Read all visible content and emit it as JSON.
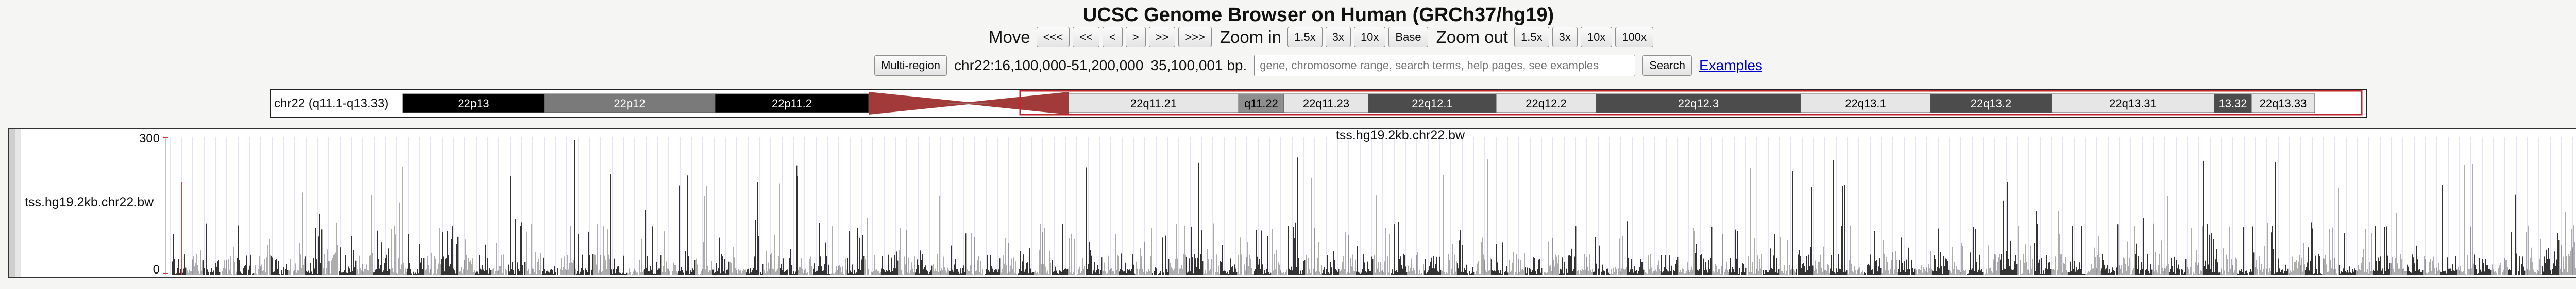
{
  "title": "UCSC Genome Browser on Human (GRCh37/hg19)",
  "nav": {
    "move_label": "Move",
    "move_buttons": [
      "<<<",
      "<<",
      "<",
      ">",
      ">>",
      ">>>"
    ],
    "zoom_in_label": "Zoom in",
    "zoom_in_buttons": [
      "1.5x",
      "3x",
      "10x",
      "Base"
    ],
    "zoom_out_label": "Zoom out",
    "zoom_out_buttons": [
      "1.5x",
      "3x",
      "10x",
      "100x"
    ]
  },
  "position": {
    "multi_region_label": "Multi-region",
    "coords": "chr22:16,100,000-51,200,000",
    "size": "35,100,001 bp.",
    "search_placeholder": "gene, chromosome range, search terms, help pages, see examples",
    "search_label": "Search",
    "examples_link": "Examples"
  },
  "ideogram": {
    "label": "chr22 (q11.1-q13.33)",
    "bands": [
      {
        "name": "22p13",
        "shade": "black"
      },
      {
        "name": "22p12",
        "shade": "gray"
      },
      {
        "name": "22p11.2",
        "shade": "black"
      },
      {
        "name": "",
        "shade": "centromere"
      },
      {
        "name": "22q11.21",
        "shade": "light"
      },
      {
        "name": "q11.22",
        "shade": "mid"
      },
      {
        "name": "22q11.23",
        "shade": "light"
      },
      {
        "name": "22q12.1",
        "shade": "dark"
      },
      {
        "name": "22q12.2",
        "shade": "light"
      },
      {
        "name": "22q12.3",
        "shade": "dark"
      },
      {
        "name": "22q13.1",
        "shade": "light"
      },
      {
        "name": "22q13.2",
        "shade": "dark"
      },
      {
        "name": "22q13.31",
        "shade": "light"
      },
      {
        "name": "13.32",
        "shade": "dark"
      },
      {
        "name": "22q13.33",
        "shade": "light"
      }
    ]
  },
  "track": {
    "name": "tss.hg19.2kb.chr22.bw",
    "center_title": "tss.hg19.2kb.chr22.bw",
    "y_max_label": "300",
    "y_min_label": "0"
  },
  "colors": {
    "selection": "#c0272d",
    "centromere": "#a23a3a",
    "signal": "#333333",
    "guide": "#c8c8f0"
  }
}
